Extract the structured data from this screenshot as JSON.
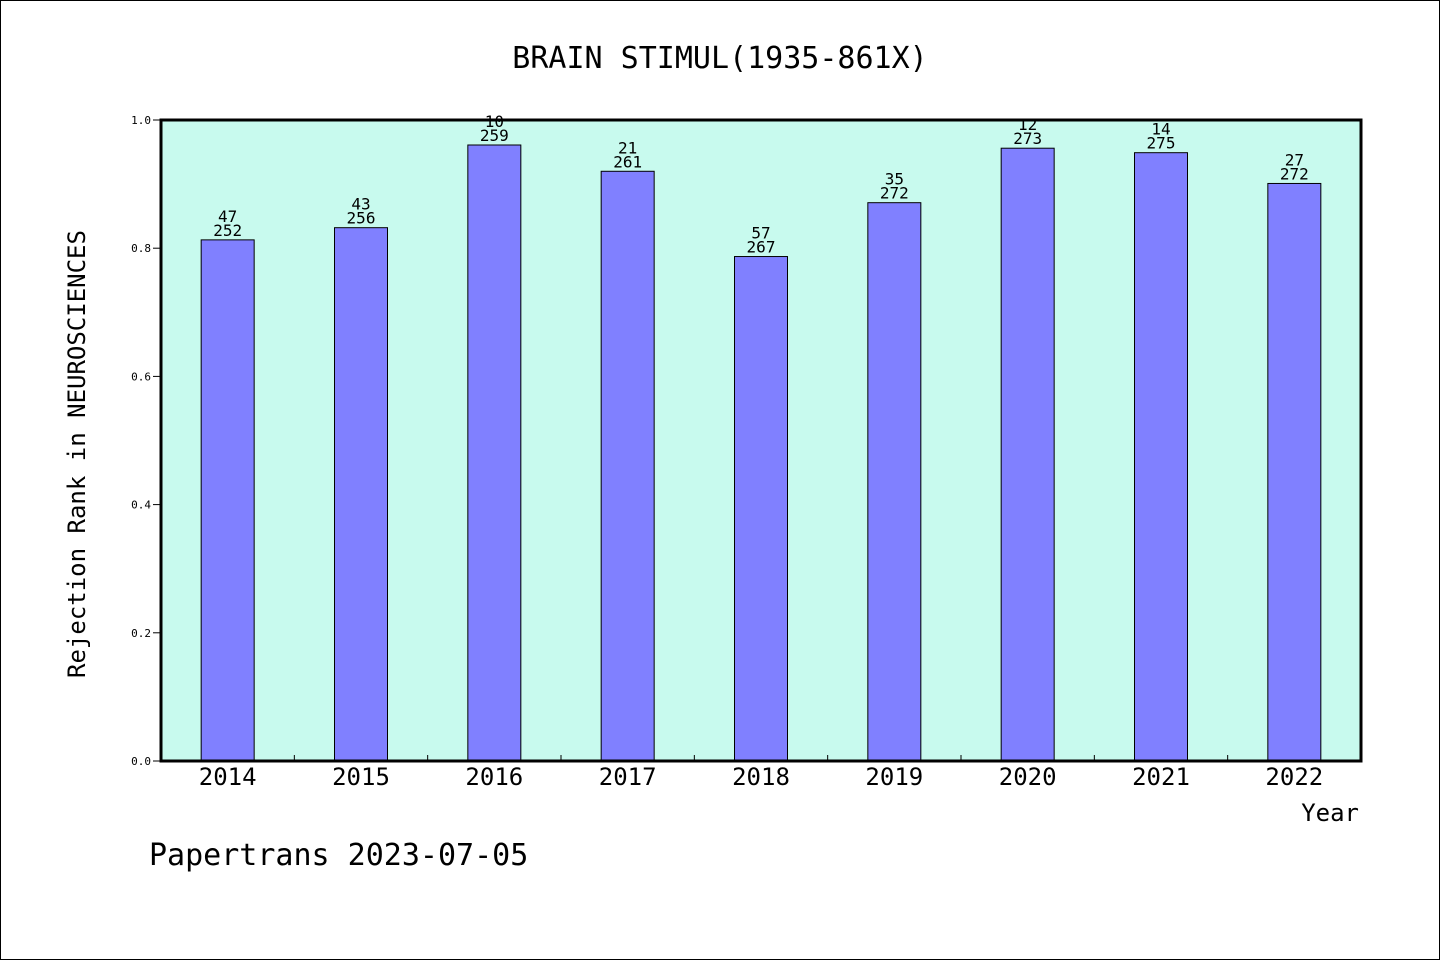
{
  "chart_data": {
    "type": "bar",
    "title": "BRAIN STIMUL(1935-861X)",
    "xlabel": "Year",
    "ylabel": "Rejection Rank in NEUROSCIENCES",
    "ylim": [
      0,
      1.0
    ],
    "yticks": [
      "0.0",
      "0.2",
      "0.4",
      "0.6",
      "0.8",
      "1.0"
    ],
    "categories": [
      "2014",
      "2015",
      "2016",
      "2017",
      "2018",
      "2019",
      "2020",
      "2021",
      "2022"
    ],
    "values": [
      0.813,
      0.832,
      0.961,
      0.92,
      0.787,
      0.871,
      0.956,
      0.949,
      0.901
    ],
    "rank": [
      "47",
      "43",
      "10",
      "21",
      "57",
      "35",
      "12",
      "14",
      "27"
    ],
    "total": [
      "252",
      "256",
      "259",
      "261",
      "267",
      "272",
      "273",
      "275",
      "272"
    ],
    "grid": false,
    "legend": "none"
  },
  "colors": {
    "plot_background": "#c8faee",
    "bar_fill": "#8080ff",
    "bar_stroke": "#000000"
  },
  "footer": "Papertrans 2023-07-05"
}
